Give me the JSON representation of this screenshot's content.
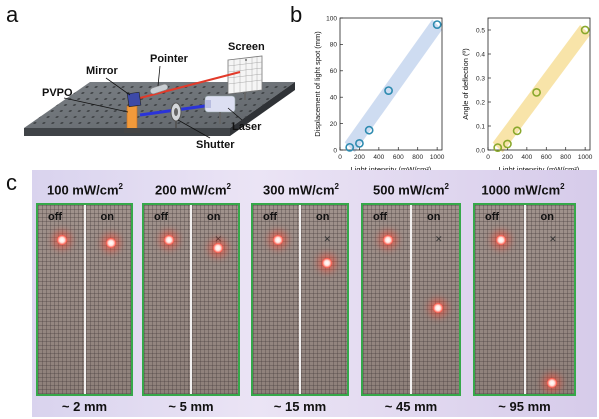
{
  "panel_letters": {
    "a": "a",
    "b": "b",
    "c": "c"
  },
  "panel_a": {
    "labels": {
      "mirror": "Mirror",
      "pointer": "Pointer",
      "screen": "Screen",
      "pvpo": "PVPO",
      "laser": "Laser",
      "shutter": "Shutter"
    }
  },
  "chart_data": [
    {
      "type": "scatter",
      "title": "",
      "xlabel": "Light intensity (mW/cm²)",
      "ylabel": "Displacement of light spot (mm)",
      "x": [
        100,
        200,
        300,
        500,
        1000
      ],
      "y": [
        2,
        5,
        15,
        45,
        95
      ],
      "xlim": [
        0,
        1050
      ],
      "ylim": [
        0,
        100
      ],
      "xticks": [
        0,
        200,
        400,
        600,
        800,
        1000
      ],
      "yticks": [
        0,
        20,
        40,
        60,
        80,
        100
      ],
      "marker_color": "#2e8bb0",
      "band_color": "#c6d6ee"
    },
    {
      "type": "scatter",
      "title": "",
      "xlabel": "Light intensity (mW/cm²)",
      "ylabel": "Angle of deflection (º)",
      "x": [
        100,
        200,
        300,
        500,
        1000
      ],
      "y": [
        0.01,
        0.025,
        0.08,
        0.24,
        0.5
      ],
      "xlim": [
        0,
        1050
      ],
      "ylim": [
        0,
        0.55
      ],
      "xticks": [
        0,
        200,
        400,
        600,
        800,
        1000
      ],
      "yticks": [
        0.0,
        0.1,
        0.2,
        0.3,
        0.4,
        0.5
      ],
      "marker_color": "#8aa82c",
      "band_color": "#f7df9a"
    }
  ],
  "panel_c": {
    "off_label": "off",
    "on_label": "on",
    "photos": [
      {
        "intensity": "100 mW/cm",
        "unit_sup": "2",
        "distance": "~ 2 mm",
        "displacement_mm": 2
      },
      {
        "intensity": "200 mW/cm",
        "unit_sup": "2",
        "distance": "~ 5 mm",
        "displacement_mm": 5
      },
      {
        "intensity": "300 mW/cm",
        "unit_sup": "2",
        "distance": "~ 15 mm",
        "displacement_mm": 15
      },
      {
        "intensity": "500 mW/cm",
        "unit_sup": "2",
        "distance": "~ 45 mm",
        "displacement_mm": 45
      },
      {
        "intensity": "1000 mW/cm",
        "unit_sup": "2",
        "distance": "~ 95 mm",
        "displacement_mm": 95
      }
    ]
  }
}
